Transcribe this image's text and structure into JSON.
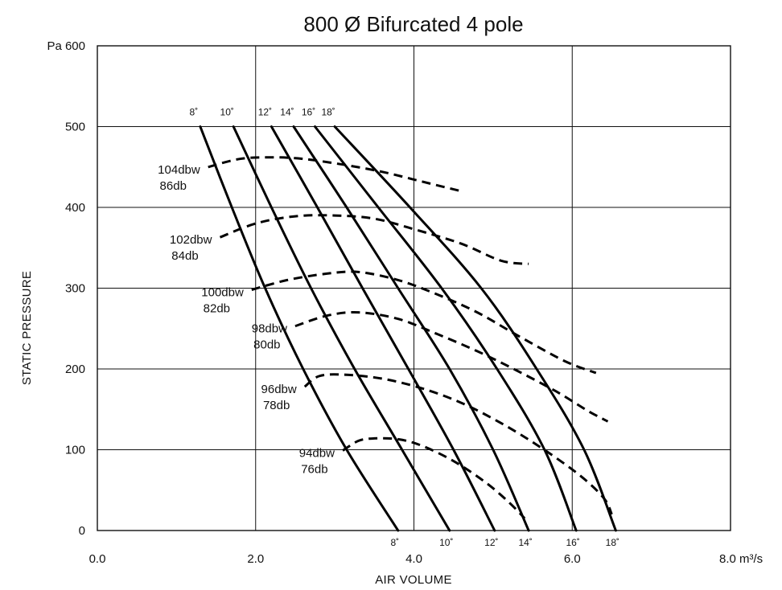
{
  "chart_data": {
    "type": "line",
    "title": "800 Ø Bifurcated 4 pole",
    "xlabel": "AIR VOLUME",
    "ylabel": "STATIC PRESSURE",
    "x_unit": "m3/s",
    "y_unit": "Pa",
    "xlim": [
      0,
      8
    ],
    "ylim": [
      0,
      600
    ],
    "grid": true,
    "x_ticks": [
      {
        "value": 0,
        "label": "0.0"
      },
      {
        "value": 2,
        "label": "2.0"
      },
      {
        "value": 4,
        "label": "4.0"
      },
      {
        "value": 6,
        "label": "6.0"
      },
      {
        "value": 8,
        "label": "8.0 m³/s"
      }
    ],
    "y_ticks": [
      {
        "value": 0,
        "label": "0"
      },
      {
        "value": 100,
        "label": "100"
      },
      {
        "value": 200,
        "label": "200"
      },
      {
        "value": 300,
        "label": "300"
      },
      {
        "value": 400,
        "label": "400"
      },
      {
        "value": 500,
        "label": "500"
      },
      {
        "value": 600,
        "label": "Pa 600"
      }
    ],
    "fan_curves": [
      {
        "name": "8˚",
        "top_label": "8˚",
        "bottom_label": "8˚",
        "points": [
          [
            1.3,
            500
          ],
          [
            1.7,
            400
          ],
          [
            2.12,
            300
          ],
          [
            2.6,
            200
          ],
          [
            3.15,
            100
          ],
          [
            3.8,
            0
          ]
        ]
      },
      {
        "name": "10˚",
        "top_label": "10˚",
        "bottom_label": "10˚",
        "points": [
          [
            1.72,
            500
          ],
          [
            2.2,
            400
          ],
          [
            2.7,
            300
          ],
          [
            3.25,
            200
          ],
          [
            3.85,
            100
          ],
          [
            4.45,
            0
          ]
        ]
      },
      {
        "name": "12˚",
        "top_label": "12˚",
        "bottom_label": "12˚",
        "points": [
          [
            2.2,
            500
          ],
          [
            2.78,
            400
          ],
          [
            3.35,
            300
          ],
          [
            3.93,
            200
          ],
          [
            4.5,
            100
          ],
          [
            5.02,
            0
          ]
        ]
      },
      {
        "name": "14˚",
        "top_label": "14˚",
        "bottom_label": "14˚",
        "points": [
          [
            2.48,
            500
          ],
          [
            3.15,
            400
          ],
          [
            3.8,
            300
          ],
          [
            4.45,
            200
          ],
          [
            5.0,
            100
          ],
          [
            5.45,
            0
          ]
        ]
      },
      {
        "name": "16˚",
        "top_label": "16˚",
        "bottom_label": "16˚",
        "points": [
          [
            2.75,
            500
          ],
          [
            3.55,
            400
          ],
          [
            4.35,
            300
          ],
          [
            5.05,
            200
          ],
          [
            5.65,
            100
          ],
          [
            6.05,
            0
          ]
        ]
      },
      {
        "name": "18˚",
        "top_label": "18˚",
        "bottom_label": "18˚",
        "points": [
          [
            3.0,
            500
          ],
          [
            3.95,
            400
          ],
          [
            4.85,
            300
          ],
          [
            5.55,
            200
          ],
          [
            6.15,
            100
          ],
          [
            6.55,
            0
          ]
        ]
      }
    ],
    "noise_curves": [
      {
        "label_line1": "104dbw",
        "label_line2": "86db",
        "points": [
          [
            1.4,
            450
          ],
          [
            1.8,
            460
          ],
          [
            2.2,
            462
          ],
          [
            2.6,
            460
          ],
          [
            3.1,
            453
          ],
          [
            3.6,
            444
          ],
          [
            4.1,
            432
          ],
          [
            4.6,
            420
          ]
        ]
      },
      {
        "label_line1": "102dbw",
        "label_line2": "84db",
        "points": [
          [
            1.55,
            363
          ],
          [
            2.0,
            380
          ],
          [
            2.5,
            389
          ],
          [
            3.0,
            390
          ],
          [
            3.5,
            386
          ],
          [
            4.0,
            373
          ],
          [
            4.6,
            355
          ],
          [
            5.1,
            334
          ],
          [
            5.45,
            330
          ]
        ]
      },
      {
        "label_line1": "100dbw",
        "label_line2": "82db",
        "points": [
          [
            1.95,
            298
          ],
          [
            2.4,
            310
          ],
          [
            2.9,
            318
          ],
          [
            3.3,
            320
          ],
          [
            3.8,
            310
          ],
          [
            4.3,
            292
          ],
          [
            4.8,
            270
          ],
          [
            5.3,
            242
          ],
          [
            5.9,
            210
          ],
          [
            6.3,
            195
          ]
        ]
      },
      {
        "label_line1": "98dbw",
        "label_line2": "80db",
        "points": [
          [
            2.5,
            253
          ],
          [
            2.9,
            266
          ],
          [
            3.3,
            270
          ],
          [
            3.8,
            262
          ],
          [
            4.3,
            243
          ],
          [
            4.8,
            222
          ],
          [
            5.3,
            198
          ],
          [
            5.8,
            172
          ],
          [
            6.2,
            148
          ],
          [
            6.45,
            135
          ]
        ]
      },
      {
        "label_line1": "96dbw",
        "label_line2": "78db",
        "points": [
          [
            2.62,
            178
          ],
          [
            2.8,
            191
          ],
          [
            3.1,
            193
          ],
          [
            3.6,
            188
          ],
          [
            4.1,
            176
          ],
          [
            4.6,
            158
          ],
          [
            5.1,
            133
          ],
          [
            5.6,
            103
          ],
          [
            6.1,
            68
          ],
          [
            6.4,
            40
          ],
          [
            6.5,
            20
          ]
        ]
      },
      {
        "label_line1": "94dbw",
        "label_line2": "76db",
        "points": [
          [
            3.1,
            99
          ],
          [
            3.3,
            111
          ],
          [
            3.5,
            114
          ],
          [
            3.8,
            113
          ],
          [
            4.1,
            105
          ],
          [
            4.5,
            86
          ],
          [
            4.9,
            60
          ],
          [
            5.2,
            35
          ],
          [
            5.4,
            15
          ]
        ]
      }
    ]
  }
}
